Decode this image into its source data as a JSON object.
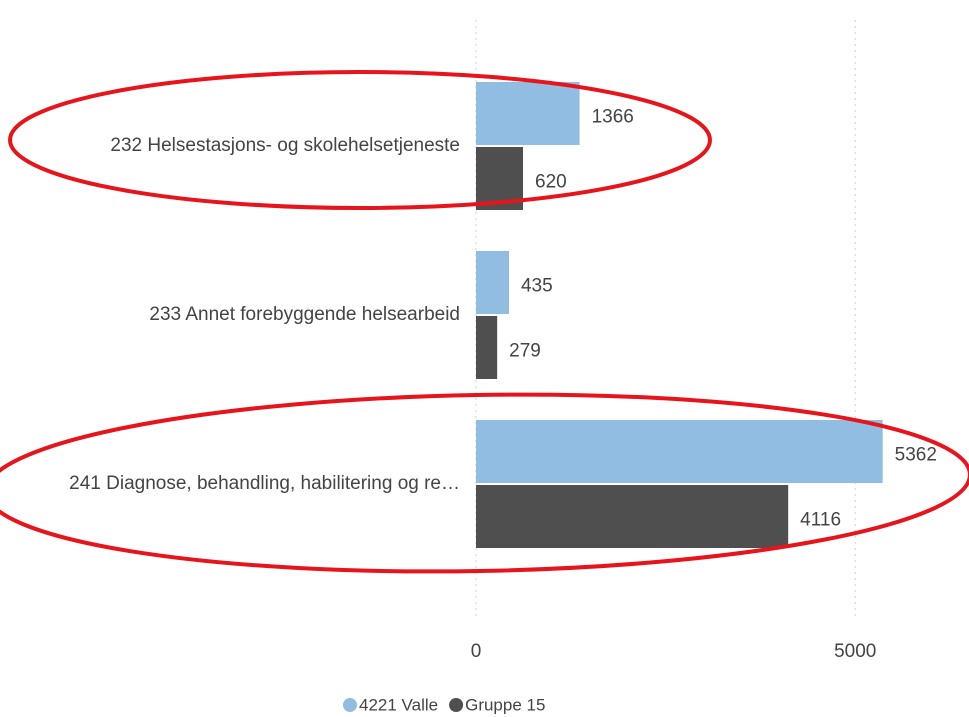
{
  "chart_data": {
    "type": "bar",
    "orientation": "horizontal",
    "categories": [
      "232 Helsestasjons- og skolehelsetjeneste",
      "233 Annet forebyggende helsearbeid",
      "241 Diagnose, behandling, habilitering og re…"
    ],
    "series": [
      {
        "name": "4221 Valle",
        "color": "#92bde3",
        "values": [
          1366,
          435,
          5362
        ]
      },
      {
        "name": "Gruppe 15",
        "color": "#4f4f4f",
        "values": [
          620,
          279,
          4116
        ]
      }
    ],
    "xlim": [
      0,
      6500
    ],
    "xticks": [
      0,
      5000
    ],
    "grid": true,
    "legend": "bottom"
  }
}
